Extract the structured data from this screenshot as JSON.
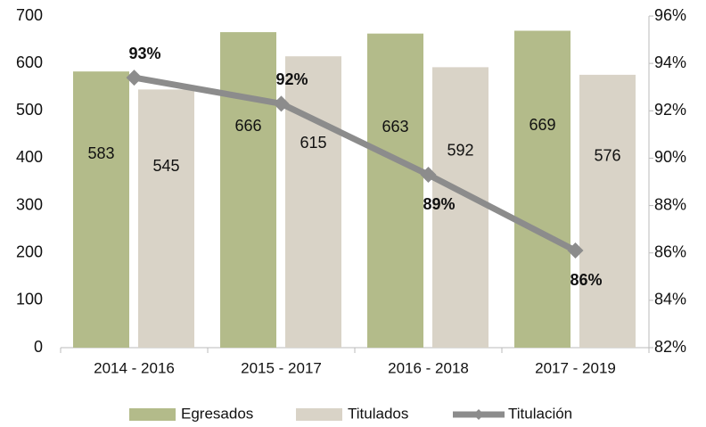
{
  "chart_data": {
    "type": "bar_line",
    "categories": [
      "2014 - 2016",
      "2015 - 2017",
      "2016 - 2018",
      "2017 - 2019"
    ],
    "series": [
      {
        "name": "Egresados",
        "color": "#b3bb8a",
        "type": "bar",
        "values": [
          583,
          666,
          663,
          669
        ]
      },
      {
        "name": "Titulados",
        "color": "#d9d3c7",
        "type": "bar",
        "values": [
          545,
          615,
          592,
          576
        ]
      },
      {
        "name": "Titulación",
        "color": "#8c8c8c",
        "type": "line",
        "axis": "y2",
        "values": [
          93.4,
          92.3,
          89.3,
          86.1
        ],
        "value_labels": [
          "93%",
          "92%",
          "89%",
          "86%"
        ]
      }
    ],
    "ylim": [
      0,
      700
    ],
    "yticks": [
      0,
      100,
      200,
      300,
      400,
      500,
      600,
      700
    ],
    "y2lim": [
      82,
      96
    ],
    "y2ticks": [
      {
        "value": 82,
        "label": "82%"
      },
      {
        "value": 84,
        "label": "84%"
      },
      {
        "value": 86,
        "label": "86%"
      },
      {
        "value": 88,
        "label": "88%"
      },
      {
        "value": 90,
        "label": "90%"
      },
      {
        "value": 92,
        "label": "92%"
      },
      {
        "value": 94,
        "label": "94%"
      },
      {
        "value": 96,
        "label": "96%"
      }
    ],
    "legend": "bottom"
  }
}
